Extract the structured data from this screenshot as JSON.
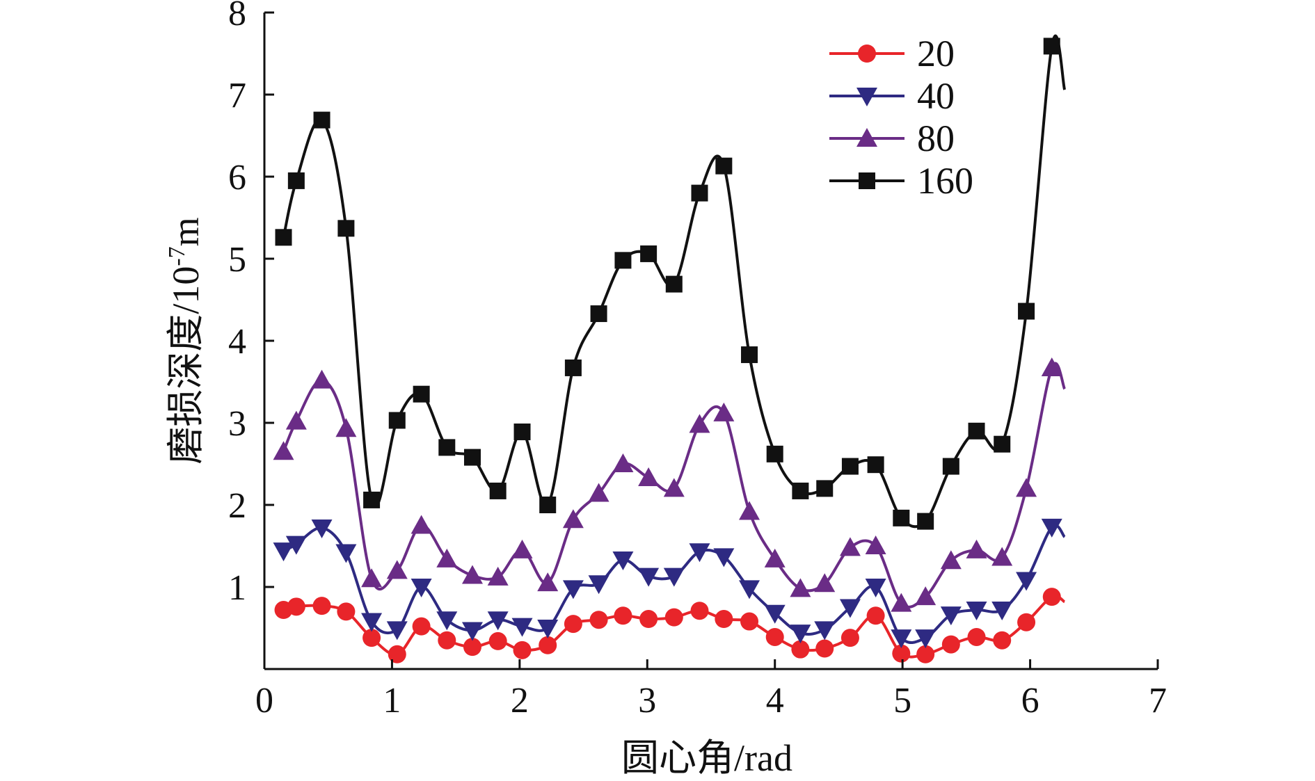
{
  "chart_data": {
    "type": "line",
    "title": "",
    "xlabel": "圆心角/rad",
    "ylabel_main": "磨损深度/10",
    "ylabel_exp": "-7",
    "ylabel_unit": "m",
    "xlim": [
      0,
      7
    ],
    "ylim": [
      0,
      8
    ],
    "x_ticks": [
      "0",
      "1",
      "2",
      "3",
      "4",
      "5",
      "6",
      "7"
    ],
    "y_ticks": [
      "1",
      "2",
      "3",
      "4",
      "5",
      "6",
      "7",
      "8"
    ],
    "grid": false,
    "legend_position": "top-right",
    "x": [
      0.15,
      0.25,
      0.45,
      0.64,
      0.84,
      1.04,
      1.23,
      1.43,
      1.63,
      1.83,
      2.02,
      2.22,
      2.42,
      2.62,
      2.81,
      3.01,
      3.21,
      3.41,
      3.6,
      3.8,
      4.0,
      4.2,
      4.39,
      4.59,
      4.79,
      4.99,
      5.18,
      5.38,
      5.58,
      5.78,
      5.97,
      6.17
    ],
    "series": [
      {
        "name": "20",
        "color": "#e8252a",
        "marker": "circle",
        "values": [
          0.72,
          0.76,
          0.77,
          0.7,
          0.38,
          0.18,
          0.52,
          0.35,
          0.27,
          0.34,
          0.23,
          0.29,
          0.55,
          0.6,
          0.65,
          0.61,
          0.63,
          0.71,
          0.61,
          0.58,
          0.39,
          0.24,
          0.25,
          0.38,
          0.65,
          0.19,
          0.18,
          0.3,
          0.39,
          0.35,
          0.57,
          0.88
        ]
      },
      {
        "name": "40",
        "color": "#2e2a82",
        "marker": "triangle-down",
        "values": [
          1.44,
          1.52,
          1.72,
          1.42,
          0.58,
          0.48,
          1.0,
          0.6,
          0.47,
          0.6,
          0.52,
          0.5,
          0.98,
          1.04,
          1.33,
          1.13,
          1.13,
          1.43,
          1.37,
          0.98,
          0.68,
          0.44,
          0.48,
          0.75,
          1.0,
          0.38,
          0.38,
          0.66,
          0.72,
          0.72,
          1.08,
          1.73
        ]
      },
      {
        "name": "80",
        "color": "#6a2c86",
        "marker": "triangle-up",
        "values": [
          2.65,
          3.02,
          3.52,
          2.93,
          1.1,
          1.2,
          1.75,
          1.34,
          1.14,
          1.12,
          1.45,
          1.05,
          1.82,
          2.14,
          2.5,
          2.33,
          2.2,
          2.98,
          3.12,
          1.92,
          1.34,
          0.98,
          1.04,
          1.48,
          1.5,
          0.8,
          0.88,
          1.32,
          1.45,
          1.36,
          2.2,
          3.67
        ]
      },
      {
        "name": "160",
        "color": "#111111",
        "marker": "square",
        "values": [
          5.26,
          5.95,
          6.69,
          5.37,
          2.06,
          3.03,
          3.35,
          2.7,
          2.58,
          2.17,
          2.89,
          2.0,
          3.67,
          4.33,
          4.98,
          5.06,
          4.69,
          5.8,
          6.13,
          3.83,
          2.62,
          2.17,
          2.2,
          2.47,
          2.49,
          1.84,
          1.8,
          2.47,
          2.9,
          2.74,
          4.36,
          7.59
        ]
      }
    ]
  }
}
